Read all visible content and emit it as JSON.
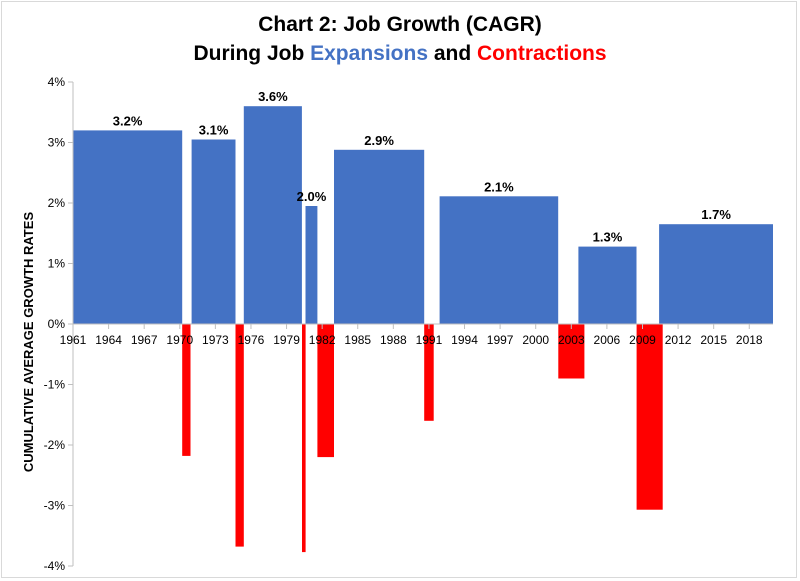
{
  "chart_data": {
    "type": "bar",
    "title": {
      "line1": "Chart 2: Job Growth (CAGR)",
      "line2_prefix": "During Job ",
      "line2_expansions": "Expansions",
      "line2_and": " and ",
      "line2_contractions": "Contractions"
    },
    "ylabel": "CUMULATIVE AVERAGE GROWTH RATES",
    "xlabel": "",
    "ylim": [
      -4,
      4
    ],
    "yticks": [
      {
        "value": 4,
        "label": "4%"
      },
      {
        "value": 3,
        "label": "3%"
      },
      {
        "value": 2,
        "label": "2%"
      },
      {
        "value": 1,
        "label": "1%"
      },
      {
        "value": 0,
        "label": "0%"
      },
      {
        "value": -1,
        "label": "-1%"
      },
      {
        "value": -2,
        "label": "-2%"
      },
      {
        "value": -3,
        "label": "-3%"
      },
      {
        "value": -4,
        "label": "-4%"
      }
    ],
    "xlim": [
      1961,
      2020
    ],
    "xticks": [
      {
        "value": 1961,
        "label": "1961"
      },
      {
        "value": 1964,
        "label": "1964"
      },
      {
        "value": 1967,
        "label": "1967"
      },
      {
        "value": 1970,
        "label": "1970"
      },
      {
        "value": 1973,
        "label": "1973"
      },
      {
        "value": 1976,
        "label": "1976"
      },
      {
        "value": 1979,
        "label": "1979"
      },
      {
        "value": 1982,
        "label": "1982"
      },
      {
        "value": 1985,
        "label": "1985"
      },
      {
        "value": 1988,
        "label": "1988"
      },
      {
        "value": 1991,
        "label": "1991"
      },
      {
        "value": 1994,
        "label": "1994"
      },
      {
        "value": 1997,
        "label": "1997"
      },
      {
        "value": 2000,
        "label": "2000"
      },
      {
        "value": 2003,
        "label": "2003"
      },
      {
        "value": 2006,
        "label": "2006"
      },
      {
        "value": 2009,
        "label": "2009"
      },
      {
        "value": 2012,
        "label": "2012"
      },
      {
        "value": 2015,
        "label": "2015"
      },
      {
        "value": 2018,
        "label": "2018"
      }
    ],
    "grid": false,
    "series": [
      {
        "name": "Expansions",
        "color": "#4472c4",
        "bars": [
          {
            "start": 1961.0,
            "end": 1970.2,
            "value": 3.2,
            "label": "3.2%"
          },
          {
            "start": 1971.0,
            "end": 1974.7,
            "value": 3.05,
            "label": "3.1%"
          },
          {
            "start": 1975.4,
            "end": 1980.3,
            "value": 3.6,
            "label": "3.6%"
          },
          {
            "start": 1980.6,
            "end": 1981.6,
            "value": 1.95,
            "label": "2.0%"
          },
          {
            "start": 1983.0,
            "end": 1990.6,
            "value": 2.88,
            "label": "2.9%"
          },
          {
            "start": 1991.9,
            "end": 2001.9,
            "value": 2.11,
            "label": "2.1%"
          },
          {
            "start": 2003.6,
            "end": 2008.5,
            "value": 1.28,
            "label": "1.3%"
          },
          {
            "start": 2010.4,
            "end": 2020.0,
            "value": 1.65,
            "label": "1.7%"
          }
        ]
      },
      {
        "name": "Contractions",
        "color": "#ff0000",
        "bars": [
          {
            "start": 1970.2,
            "end": 1970.9,
            "value": -2.18
          },
          {
            "start": 1974.7,
            "end": 1975.4,
            "value": -3.68
          },
          {
            "start": 1980.3,
            "end": 1980.6,
            "value": -3.77
          },
          {
            "start": 1981.6,
            "end": 1983.0,
            "value": -2.2
          },
          {
            "start": 1990.6,
            "end": 1991.4,
            "value": -1.6
          },
          {
            "start": 2001.9,
            "end": 2004.1,
            "value": -0.9
          },
          {
            "start": 2008.5,
            "end": 2010.7,
            "value": -3.07
          }
        ]
      }
    ]
  }
}
